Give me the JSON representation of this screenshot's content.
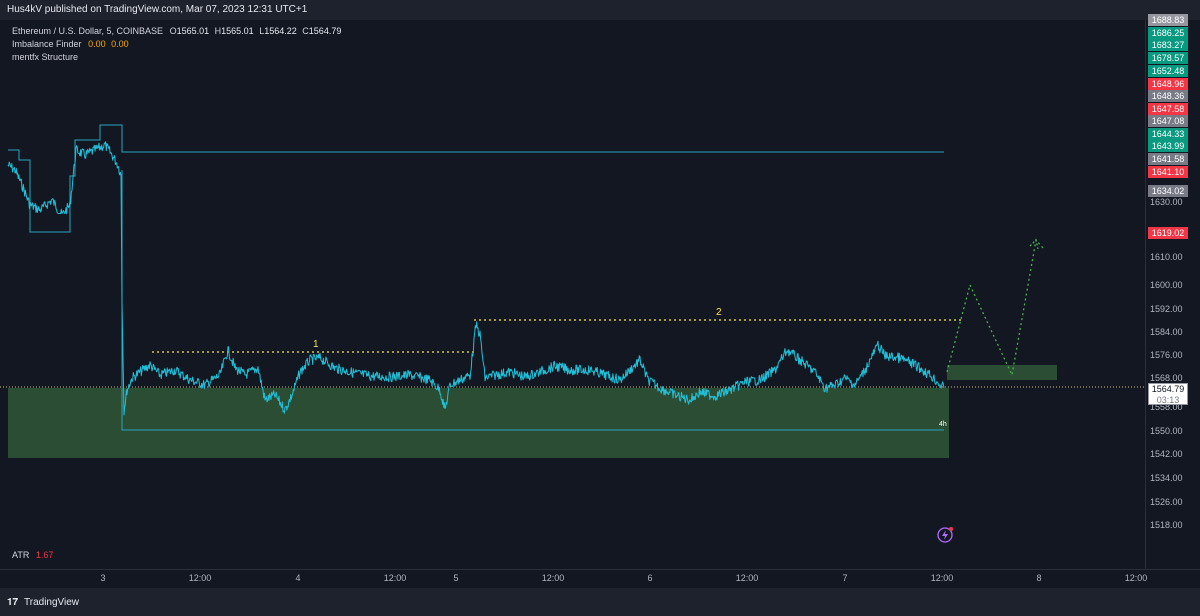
{
  "header": {
    "publish_text": "Hus4kV published on TradingView.com, Mar 07, 2023 12:31 UTC+1"
  },
  "legend": {
    "symbol": "Ethereum / U.S. Dollar, 5, COINBASE",
    "o_label": "O",
    "o_value": "1565.01",
    "h_label": "H",
    "h_value": "1565.01",
    "l_label": "L",
    "l_value": "1564.22",
    "c_label": "C",
    "c_value": "1564.79",
    "indicator1_name": "Imbalance Finder",
    "indicator1_v1": "0.00",
    "indicator1_v2": "0.00",
    "indicator2_name": "mentfx Structure",
    "atr_name": "ATR",
    "atr_value": "1.67"
  },
  "annotations": {
    "label_1": "1",
    "label_2": "2",
    "timeframe": "4h"
  },
  "price_axis": {
    "labels": [
      "1630.00",
      "1610.00",
      "1600.00",
      "1592.00",
      "1584.00",
      "1576.00",
      "1568.00",
      "1558.00",
      "1550.00",
      "1542.00",
      "1534.00",
      "1526.00",
      "1518.00"
    ],
    "tags": [
      {
        "text": "1688.83",
        "color": "#9598a1"
      },
      {
        "text": "1686.25",
        "color": "#089981"
      },
      {
        "text": "1683.27",
        "color": "#089981"
      },
      {
        "text": "1678.57",
        "color": "#089981"
      },
      {
        "text": "1652.48",
        "color": "#089981"
      },
      {
        "text": "1648.96",
        "color": "#f23645"
      },
      {
        "text": "1648.36",
        "color": "#787b86"
      },
      {
        "text": "1647.58",
        "color": "#f23645"
      },
      {
        "text": "1647.08",
        "color": "#787b86"
      },
      {
        "text": "1644.33",
        "color": "#089981"
      },
      {
        "text": "1643.99",
        "color": "#089981"
      },
      {
        "text": "1641.58",
        "color": "#787b86"
      },
      {
        "text": "1641.10",
        "color": "#f23645"
      },
      {
        "text": "1634.02",
        "color": "#787b86"
      },
      {
        "text": "1619.02",
        "color": "#f23645"
      }
    ],
    "current_price": "1564.79",
    "countdown": "03:13"
  },
  "time_axis": {
    "labels": [
      "3",
      "12:00",
      "4",
      "12:00",
      "5",
      "12:00",
      "6",
      "12:00",
      "7",
      "12:00",
      "8",
      "12:00"
    ]
  },
  "footer": {
    "brand": "TradingView"
  },
  "colors": {
    "background": "#131722",
    "price_line": "#22c0d8",
    "zone_fill": "#2a4d33",
    "annotation_yellow": "#ffeb3b",
    "projection_green": "#4caf50"
  },
  "chart_data": {
    "type": "line",
    "symbol": "ETH/USD",
    "interval": "5",
    "x": [
      "3",
      "12:00",
      "4",
      "12:00",
      "5",
      "12:00",
      "6",
      "12:00",
      "7",
      "12:00",
      "8"
    ],
    "series": [
      {
        "values": [
          1645,
          1552,
          1571,
          1566,
          1585,
          1572,
          1570,
          1568,
          1568,
          1570,
          null
        ]
      }
    ],
    "ylim": [
      1514,
      1690
    ]
  }
}
